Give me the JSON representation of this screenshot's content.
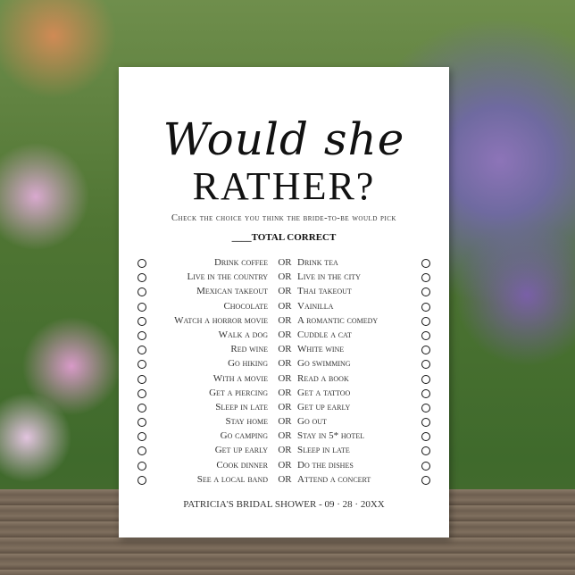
{
  "card": {
    "title_line1": "Would she",
    "title_line2": "RATHER?",
    "instruction": "Check the choice you think the bride-to-be would pick",
    "total_label": "____TOTAL CORRECT",
    "separator": "OR",
    "rows": [
      {
        "left": "Drink coffee",
        "right": "Drink tea"
      },
      {
        "left": "Live in the country",
        "right": "Live in the city"
      },
      {
        "left": "Mexican takeout",
        "right": "Thai takeout"
      },
      {
        "left": "Chocolate",
        "right": "Vainilla"
      },
      {
        "left": "Watch a horror movie",
        "right": "A romantic comedy"
      },
      {
        "left": "Walk a dog",
        "right": "Cuddle a cat"
      },
      {
        "left": "Red wine",
        "right": "White wine"
      },
      {
        "left": "Go hiking",
        "right": "Go swimming"
      },
      {
        "left": "With a movie",
        "right": "Read a book"
      },
      {
        "left": "Get a piercing",
        "right": "Get a tattoo"
      },
      {
        "left": "Sleep in late",
        "right": "Get up early"
      },
      {
        "left": "Stay home",
        "right": "Go out"
      },
      {
        "left": "Go camping",
        "right": "Stay in 5* hotel"
      },
      {
        "left": "Get up early",
        "right": "Sleep in late"
      },
      {
        "left": "Cook dinner",
        "right": "Do the dishes"
      },
      {
        "left": "See a local band",
        "right": "Attend a concert"
      }
    ],
    "footer": "PATRICIA'S BRIDAL SHOWER - 09 · 28 · 20XX"
  }
}
